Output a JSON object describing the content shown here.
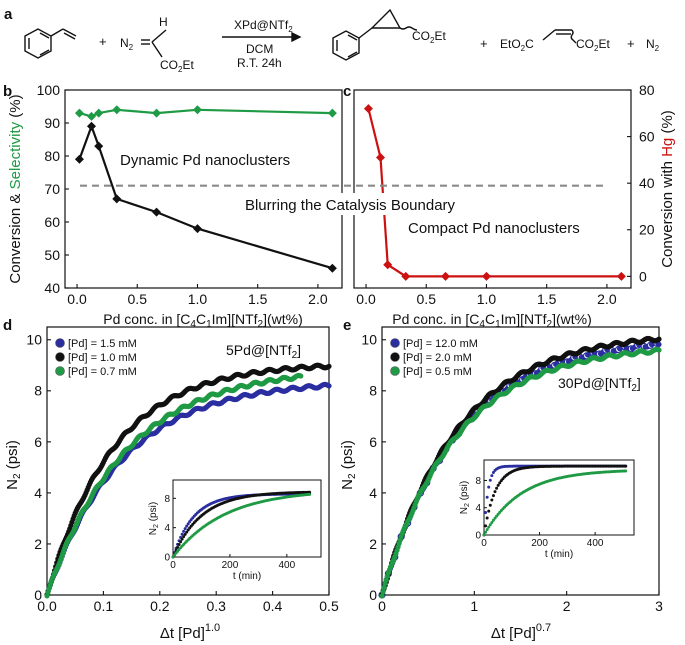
{
  "colors": {
    "black": "#111111",
    "green": "#1f9a45",
    "red": "#cc1111",
    "blue": "#2a2ea0",
    "gray": "#8a8a8a"
  },
  "scheme": {
    "label": "a",
    "catalyst": "XPd@NTf",
    "catalyst_sub": "2",
    "solvent": "DCM",
    "conditions": "R.T.   24h",
    "reagent_n2": "N",
    "reagent_n2_sub": "2",
    "reagent_h": "H",
    "reagent_ester": "CO",
    "reagent_ester_sub": "2",
    "reagent_ester_tail": "Et",
    "product_ester": "CO",
    "product_ester_sub": "2",
    "product_ester_tail": "Et",
    "plus": "+",
    "byproduct_left": "EtO",
    "byproduct_left_sub": "2",
    "byproduct_left_tail": "C",
    "byproduct_right": "CO",
    "byproduct_right_sub": "2",
    "byproduct_right_tail": "Et",
    "gas": "N",
    "gas_sub": "2"
  },
  "panels": {
    "b": {
      "label": "b",
      "annotation": "Dynamic Pd nanoclusters"
    },
    "c": {
      "label": "c",
      "annotation": "Compact Pd nanoclusters"
    },
    "d": {
      "label": "d",
      "annotation": "5Pd@[NTf",
      "annotation_sub": "2",
      "annotation_tail": "]"
    },
    "e": {
      "label": "e",
      "annotation": "30Pd@[NTf",
      "annotation_sub": "2",
      "annotation_tail": "]"
    },
    "boundary_text": "Blurring the Catalysis Boundary"
  },
  "chart_data": [
    {
      "id": "b",
      "type": "line",
      "xlabel": {
        "pre": "Pd conc. in [C",
        "s1": "4",
        "mid": "C",
        "s2": "1",
        "post": "Im][NTf",
        "s3": "2",
        "end": "](wt%)"
      },
      "ylabel": {
        "part1": "Conversion & ",
        "part2": "Selectivity",
        "part3": " (%)"
      },
      "xlim": [
        -0.1,
        2.2
      ],
      "ylim": [
        40,
        100
      ],
      "xticks": [
        "0.0",
        "0.5",
        "1.0",
        "1.5",
        "2.0"
      ],
      "yticks": [
        "40",
        "50",
        "60",
        "70",
        "80",
        "90",
        "100"
      ],
      "series": [
        {
          "color": "green",
          "marker": "diamond",
          "x": [
            0.02,
            0.12,
            0.18,
            0.33,
            0.66,
            1.0,
            2.12
          ],
          "y": [
            93,
            92,
            93,
            94,
            93,
            94,
            93
          ]
        },
        {
          "color": "black",
          "marker": "diamond",
          "x": [
            0.02,
            0.12,
            0.18,
            0.33,
            0.66,
            1.0,
            2.12
          ],
          "y": [
            79,
            89,
            83,
            67,
            63,
            58,
            46
          ]
        }
      ],
      "dashed_line_y": 71
    },
    {
      "id": "c",
      "type": "line",
      "xlabel": {
        "pre": "Pd conc. in [C",
        "s1": "4",
        "mid": "C",
        "s2": "1",
        "post": "Im][NTf",
        "s3": "2",
        "end": "](wt%)"
      },
      "ylabel": {
        "part1": "Conversion with ",
        "part2": "Hg",
        "part3": " (%)"
      },
      "xlim": [
        -0.1,
        2.2
      ],
      "ylim": [
        -5,
        80
      ],
      "xticks": [
        "0.0",
        "0.5",
        "1.0",
        "1.5",
        "2.0"
      ],
      "yticks": [
        "0",
        "20",
        "40",
        "60",
        "80"
      ],
      "series": [
        {
          "color": "red",
          "marker": "diamond",
          "x": [
            0.02,
            0.12,
            0.18,
            0.33,
            0.66,
            1.0,
            2.12
          ],
          "y": [
            72,
            51,
            5,
            0,
            0,
            0,
            0
          ]
        }
      ],
      "dashed_line_y": 40
    },
    {
      "id": "d",
      "type": "scatter",
      "xlabel": {
        "pre": "Δt [Pd]",
        "sup": "1.0"
      },
      "ylabel": {
        "pre": "N",
        "sub": "2",
        "post": " (psi)"
      },
      "xlim": [
        0,
        0.5
      ],
      "ylim": [
        0,
        10.5
      ],
      "xticks": [
        "0.0",
        "0.1",
        "0.2",
        "0.3",
        "0.4",
        "0.5"
      ],
      "yticks": [
        "0",
        "2",
        "4",
        "6",
        "8",
        "10"
      ],
      "legend": [
        "[Pd] = 1.5 mM",
        "[Pd] = 1.0 mM",
        "[Pd] = 0.7 mM"
      ],
      "series": [
        {
          "color": "blue",
          "a": 8.4,
          "k": 7.5,
          "xmax": 0.5
        },
        {
          "color": "black",
          "a": 9.1,
          "k": 8.5,
          "xmax": 0.5
        },
        {
          "color": "green",
          "a": 8.9,
          "k": 7.2,
          "xmax": 0.45
        }
      ],
      "inset": {
        "xlabel": "t (min)",
        "ylabel": {
          "pre": "N",
          "sub": "2",
          "post": " (psi)"
        },
        "xlim": [
          0,
          520
        ],
        "ylim": [
          0,
          10.5
        ],
        "xticks": [
          "0",
          "200",
          "400"
        ],
        "yticks": [
          "0",
          "4",
          "8"
        ],
        "series": [
          {
            "color": "blue",
            "a": 8.6,
            "k": 0.014,
            "xmax": 480
          },
          {
            "color": "black",
            "a": 8.9,
            "k": 0.01,
            "xmax": 480
          },
          {
            "color": "green",
            "a": 9.2,
            "k": 0.0055,
            "xmax": 480
          }
        ]
      }
    },
    {
      "id": "e",
      "type": "scatter",
      "xlabel": {
        "pre": "Δt [Pd]",
        "sup": "0.7"
      },
      "ylabel": {
        "pre": "N",
        "sub": "2",
        "post": " (psi)"
      },
      "xlim": [
        0,
        3
      ],
      "ylim": [
        0,
        10.5
      ],
      "xticks": [
        "0",
        "1",
        "2",
        "3"
      ],
      "yticks": [
        "0",
        "2",
        "4",
        "6",
        "8",
        "10"
      ],
      "legend": [
        "[Pd] = 12.0 mM",
        "[Pd] = 2.0 mM",
        "[Pd] = 0.5 mM"
      ],
      "series": [
        {
          "color": "blue",
          "a": 10.1,
          "k": 1.2,
          "xmax": 3
        },
        {
          "color": "black",
          "a": 10.3,
          "k": 1.22,
          "xmax": 3
        },
        {
          "color": "green",
          "a": 9.8,
          "k": 1.25,
          "xmax": 3
        }
      ],
      "inset": {
        "xlabel": "t (min)",
        "ylabel": {
          "pre": "N",
          "sub": "2",
          "post": " (psi)"
        },
        "xlim": [
          0,
          540
        ],
        "ylim": [
          0,
          11
        ],
        "xticks": [
          "0",
          "200",
          "400"
        ],
        "yticks": [
          "0",
          "4",
          "8"
        ],
        "series": [
          {
            "color": "blue",
            "a": 10.1,
            "k": 0.07,
            "xmax": 510
          },
          {
            "color": "black",
            "a": 10.1,
            "k": 0.025,
            "xmax": 510
          },
          {
            "color": "green",
            "a": 9.6,
            "k": 0.0075,
            "xmax": 510
          }
        ]
      }
    }
  ]
}
